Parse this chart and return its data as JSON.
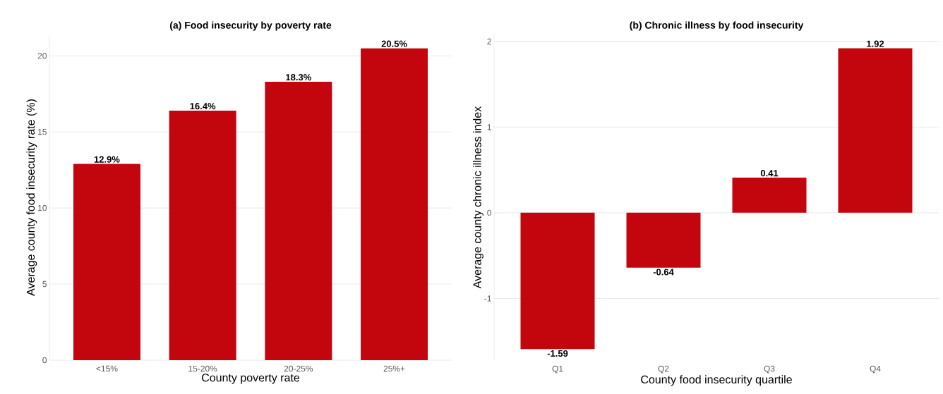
{
  "chart_data": [
    {
      "type": "bar",
      "title": "(a) Food insecurity by poverty rate",
      "xlabel": "County poverty rate",
      "ylabel": "Average county food insecurity rate (%)",
      "categories": [
        "<15%",
        "15-20%",
        "20-25%",
        "25%+"
      ],
      "values": [
        12.9,
        16.4,
        18.3,
        20.5
      ],
      "value_labels": [
        "12.9%",
        "16.4%",
        "18.3%",
        "20.5%"
      ],
      "color": "#c3050e",
      "ylim": [
        0,
        21.4
      ],
      "yticks": [
        0,
        5,
        10,
        15,
        20
      ],
      "grid": "y"
    },
    {
      "type": "bar",
      "title": "(b) Chronic illness by food insecurity",
      "xlabel": "County food insecurity quartile",
      "ylabel": "Average county chronic illness index",
      "categories": [
        "Q1",
        "Q2",
        "Q3",
        "Q4"
      ],
      "values": [
        -1.59,
        -0.64,
        0.41,
        1.92
      ],
      "value_labels": [
        "-1.59",
        "-0.64",
        "0.41",
        "1.92"
      ],
      "color": "#c3050e",
      "ylim": [
        -1.72,
        2.08
      ],
      "yticks": [
        -1,
        0,
        1,
        2
      ],
      "grid": "y"
    }
  ]
}
